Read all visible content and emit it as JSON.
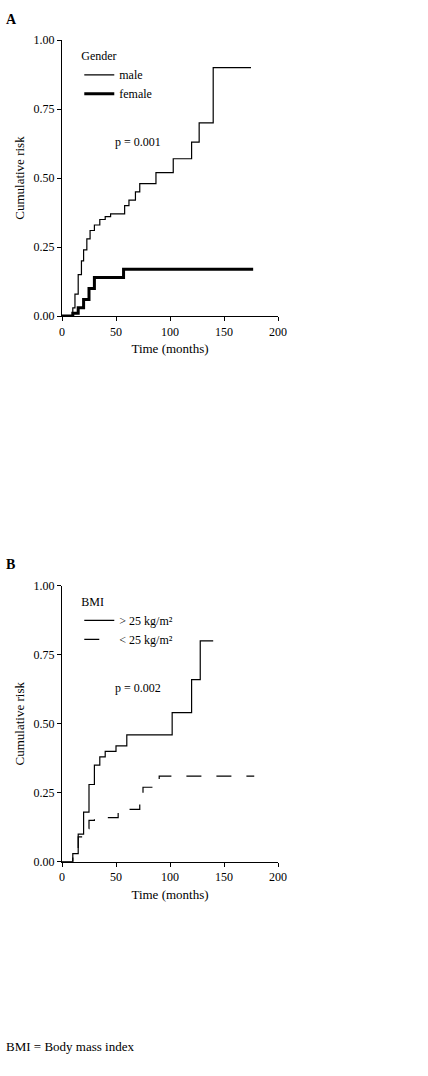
{
  "chart_data": [
    {
      "type": "line",
      "title": "A",
      "x_label": "Time (months)",
      "y_label": "Cumulative risk",
      "legend_title": "Gender",
      "legend": "top-left",
      "annotations": [
        "p = 0.001"
      ],
      "xlim": [
        0,
        200
      ],
      "xticks": [
        0,
        50,
        100,
        150,
        200
      ],
      "ylim": [
        0,
        1
      ],
      "yticks": [
        {
          "value": 0,
          "label": "0.00"
        },
        {
          "value": 0.25,
          "label": "0.25"
        },
        {
          "value": 0.5,
          "label": "0.50"
        },
        {
          "value": 0.75,
          "label": "0.75"
        },
        {
          "value": 1,
          "label": "1.00"
        }
      ],
      "grid": false,
      "series": [
        {
          "name": "male",
          "color": "#000000",
          "line_style": "solid",
          "x": [
            0,
            8,
            10,
            12,
            15,
            18,
            20,
            23,
            26,
            30,
            35,
            40,
            45,
            58,
            62,
            68,
            72,
            87,
            103,
            120,
            127,
            140,
            175
          ],
          "values": [
            0,
            0,
            0.03,
            0.08,
            0.15,
            0.2,
            0.24,
            0.28,
            0.31,
            0.33,
            0.35,
            0.36,
            0.37,
            0.4,
            0.42,
            0.45,
            0.48,
            0.52,
            0.57,
            0.63,
            0.7,
            0.9,
            0.9
          ]
        },
        {
          "name": "female",
          "color": "#000000",
          "line_style": "thick",
          "x": [
            0,
            8,
            10,
            15,
            20,
            25,
            30,
            57,
            177
          ],
          "values": [
            0,
            0,
            0.01,
            0.03,
            0.06,
            0.1,
            0.14,
            0.17,
            0.17
          ]
        }
      ]
    },
    {
      "type": "line",
      "title": "B",
      "x_label": "Time (months)",
      "y_label": "Cumulative risk",
      "legend_title": "BMI",
      "legend": "top-left",
      "annotations": [
        "p = 0.002"
      ],
      "footnote": "BMI = Body mass index",
      "xlim": [
        0,
        200
      ],
      "xticks": [
        0,
        50,
        100,
        150,
        200
      ],
      "ylim": [
        0,
        1
      ],
      "yticks": [
        {
          "value": 0,
          "label": "0.00"
        },
        {
          "value": 0.25,
          "label": "0.25"
        },
        {
          "value": 0.5,
          "label": "0.50"
        },
        {
          "value": 0.75,
          "label": "0.75"
        },
        {
          "value": 1,
          "label": "1.00"
        }
      ],
      "grid": false,
      "series": [
        {
          "name": "> 25 kg/m²",
          "color": "#000000",
          "line_style": "solid",
          "x": [
            0,
            6,
            10,
            15,
            20,
            25,
            30,
            35,
            40,
            50,
            60,
            102,
            120,
            128,
            140
          ],
          "values": [
            0,
            0,
            0.03,
            0.1,
            0.18,
            0.28,
            0.35,
            0.38,
            0.4,
            0.42,
            0.46,
            0.54,
            0.66,
            0.8,
            0.8
          ]
        },
        {
          "name": "< 25 kg/m²",
          "color": "#000000",
          "line_style": "dashed",
          "x": [
            0,
            6,
            10,
            15,
            20,
            25,
            30,
            52,
            72,
            75,
            90,
            178
          ],
          "values": [
            0,
            0,
            0.04,
            0.09,
            0.12,
            0.15,
            0.16,
            0.19,
            0.23,
            0.27,
            0.31,
            0.31
          ]
        }
      ]
    }
  ]
}
